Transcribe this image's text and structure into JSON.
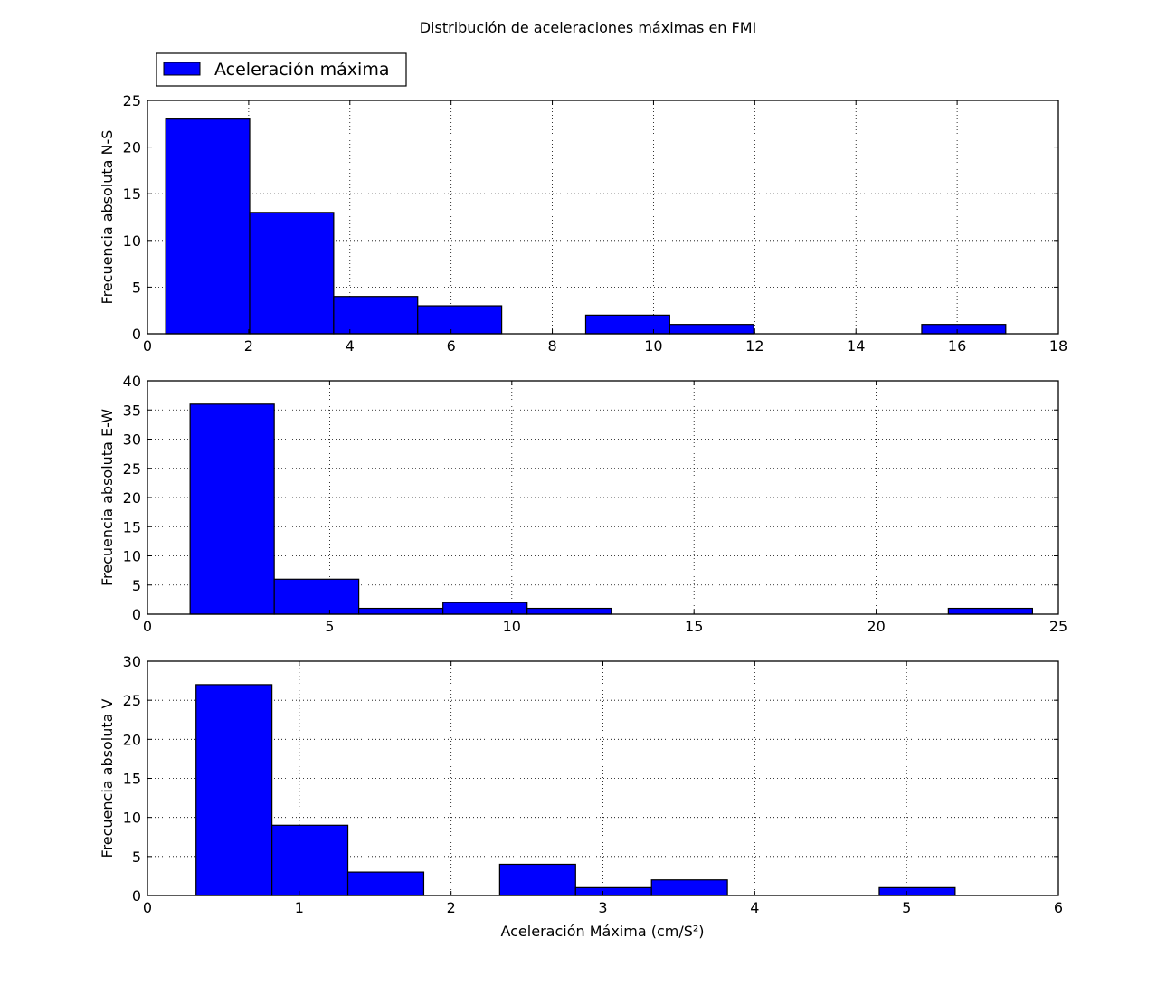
{
  "chart_data": {
    "type": "bar",
    "title": "Distribución de aceleraciones máximas en FMI",
    "legend": {
      "placement": "top-left",
      "entries": [
        "Aceleración máxima"
      ]
    },
    "colors": {
      "bar_fill": "#0000ff",
      "bar_edge": "#000000",
      "grid": "#000000",
      "background": "#ffffff"
    },
    "grid": true,
    "xlabel": "Aceleración Máxima (cm/S²)",
    "subplots": [
      {
        "ylabel": "Frecuencia absoluta N-S",
        "xlim": [
          0,
          18
        ],
        "ylim": [
          0,
          25
        ],
        "xticks": [
          "0",
          "2",
          "4",
          "6",
          "8",
          "10",
          "12",
          "14",
          "16",
          "18"
        ],
        "yticks": [
          "0",
          "5",
          "10",
          "15",
          "20",
          "25"
        ],
        "bins": [
          {
            "x0": 0.36,
            "x1": 2.02,
            "count": 23
          },
          {
            "x0": 2.02,
            "x1": 3.68,
            "count": 13
          },
          {
            "x0": 3.68,
            "x1": 5.34,
            "count": 4
          },
          {
            "x0": 5.34,
            "x1": 7.0,
            "count": 3
          },
          {
            "x0": 7.0,
            "x1": 8.66,
            "count": 0
          },
          {
            "x0": 8.66,
            "x1": 10.32,
            "count": 2
          },
          {
            "x0": 10.32,
            "x1": 11.98,
            "count": 1
          },
          {
            "x0": 11.98,
            "x1": 13.64,
            "count": 0
          },
          {
            "x0": 13.64,
            "x1": 15.3,
            "count": 0
          },
          {
            "x0": 15.3,
            "x1": 16.96,
            "count": 1
          }
        ]
      },
      {
        "ylabel": "Frecuencia absoluta E-W",
        "xlim": [
          0,
          25
        ],
        "ylim": [
          0,
          40
        ],
        "xticks": [
          "0",
          "5",
          "10",
          "15",
          "20",
          "25"
        ],
        "yticks": [
          "0",
          "5",
          "10",
          "15",
          "20",
          "25",
          "30",
          "35",
          "40"
        ],
        "bins": [
          {
            "x0": 1.17,
            "x1": 3.48,
            "count": 36
          },
          {
            "x0": 3.48,
            "x1": 5.8,
            "count": 6
          },
          {
            "x0": 5.8,
            "x1": 8.11,
            "count": 1
          },
          {
            "x0": 8.11,
            "x1": 10.42,
            "count": 2
          },
          {
            "x0": 10.42,
            "x1": 12.73,
            "count": 1
          },
          {
            "x0": 12.73,
            "x1": 15.04,
            "count": 0
          },
          {
            "x0": 15.04,
            "x1": 17.35,
            "count": 0
          },
          {
            "x0": 17.35,
            "x1": 19.67,
            "count": 0
          },
          {
            "x0": 19.67,
            "x1": 21.98,
            "count": 0
          },
          {
            "x0": 21.98,
            "x1": 24.29,
            "count": 1
          }
        ]
      },
      {
        "ylabel": "Frecuencia absoluta V",
        "xlim": [
          0,
          6
        ],
        "ylim": [
          0,
          30
        ],
        "xticks": [
          "0",
          "1",
          "2",
          "3",
          "4",
          "5",
          "6"
        ],
        "yticks": [
          "0",
          "5",
          "10",
          "15",
          "20",
          "25",
          "30"
        ],
        "bins": [
          {
            "x0": 0.32,
            "x1": 0.82,
            "count": 27
          },
          {
            "x0": 0.82,
            "x1": 1.32,
            "count": 9
          },
          {
            "x0": 1.32,
            "x1": 1.82,
            "count": 3
          },
          {
            "x0": 1.82,
            "x1": 2.32,
            "count": 0
          },
          {
            "x0": 2.32,
            "x1": 2.82,
            "count": 4
          },
          {
            "x0": 2.82,
            "x1": 3.32,
            "count": 1
          },
          {
            "x0": 3.32,
            "x1": 3.82,
            "count": 2
          },
          {
            "x0": 3.82,
            "x1": 4.32,
            "count": 0
          },
          {
            "x0": 4.32,
            "x1": 4.82,
            "count": 0
          },
          {
            "x0": 4.82,
            "x1": 5.32,
            "count": 1
          }
        ]
      }
    ]
  }
}
